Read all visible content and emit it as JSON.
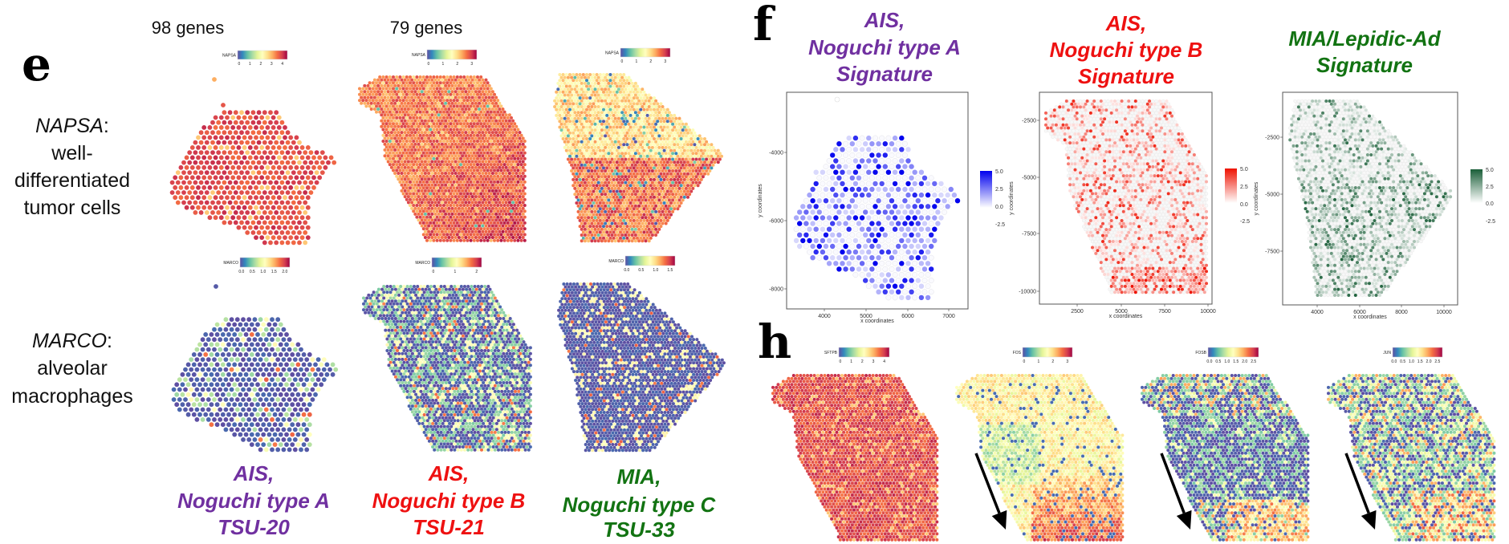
{
  "panel_e": {
    "letter": "e",
    "gene_counts": [
      "98 genes",
      "79 genes"
    ],
    "rows": [
      {
        "gene": "NAPSA",
        "suffix": ":",
        "desc": [
          "well-",
          "differentiated",
          "tumor cells"
        ]
      },
      {
        "gene": "MARCO",
        "suffix": ":",
        "desc": [
          "alveolar",
          "macrophages"
        ]
      }
    ],
    "samples": [
      {
        "lines": [
          "AIS,",
          "Noguchi type A",
          "TSU-20"
        ],
        "color": "#7030a0"
      },
      {
        "lines": [
          "AIS,",
          "Noguchi type B",
          "TSU-21"
        ],
        "color": "#ee1111"
      },
      {
        "lines": [
          "MIA,",
          "Noguchi type C",
          "TSU-33"
        ],
        "color": "#127312"
      }
    ],
    "colorbars": [
      {
        "label": "NAPSA",
        "ticks": [
          "0",
          "1",
          "2",
          "3",
          "4"
        ]
      },
      {
        "label": "NAPSA",
        "ticks": [
          "0",
          "1",
          "2",
          "3"
        ]
      },
      {
        "label": "NAPSA",
        "ticks": [
          "0",
          "1",
          "2",
          "3"
        ]
      },
      {
        "label": "MARCO",
        "ticks": [
          "0.0",
          "0.5",
          "1.0",
          "1.5",
          "2.0"
        ]
      },
      {
        "label": "MARCO",
        "ticks": [
          "0",
          "1",
          "2"
        ]
      },
      {
        "label": "MARCO",
        "ticks": [
          "0.0",
          "0.5",
          "1.0",
          "1.5"
        ]
      }
    ],
    "colormap": "spectral"
  },
  "panel_f": {
    "letter": "f",
    "plots": [
      {
        "title": [
          "AIS,",
          "Noguchi type A",
          "Signature"
        ],
        "title_color": "#7030a0",
        "accent": "#0000ee",
        "xlabel": "x coordinates",
        "ylabel": "y coordinates",
        "xticks": [
          "4000",
          "5000",
          "6000",
          "7000"
        ],
        "yticks": [
          "-4000",
          "-6000",
          "-8000"
        ],
        "legend_ticks": [
          "5.0",
          "2.5",
          "0.0",
          "-2.5"
        ]
      },
      {
        "title": [
          "AIS,",
          "Noguchi type B",
          "Signature"
        ],
        "title_color": "#ee1111",
        "accent": "#ee1100",
        "xlabel": "x coordinates",
        "ylabel": "y coordinates",
        "xticks": [
          "2500",
          "5000",
          "7500",
          "10000"
        ],
        "yticks": [
          "-2500",
          "-5000",
          "-7500",
          "-10000"
        ],
        "legend_ticks": [
          "5.0",
          "2.5",
          "0.0",
          "-2.5"
        ]
      },
      {
        "title": [
          "MIA/Lepidic-Ad",
          "Signature"
        ],
        "title_color": "#127312",
        "accent": "#1a5e38",
        "xlabel": "x coordinates",
        "ylabel": "y coordinates",
        "xticks": [
          "4000",
          "6000",
          "8000",
          "10000"
        ],
        "yticks": [
          "-2500",
          "-5000",
          "-7500"
        ],
        "legend_ticks": [
          "5.0",
          "2.5",
          "0.0",
          "-2.5"
        ]
      }
    ]
  },
  "panel_h": {
    "letter": "h",
    "colorbars": [
      {
        "label": "SFTPB",
        "ticks": [
          "0",
          "1",
          "2",
          "3",
          "4"
        ]
      },
      {
        "label": "FOS",
        "ticks": [
          "0",
          "1",
          "2",
          "3"
        ]
      },
      {
        "label": "FOSB",
        "ticks": [
          "0.0",
          "0.5",
          "1.0",
          "1.5",
          "2.0",
          "2.5"
        ]
      },
      {
        "label": "JUN",
        "ticks": [
          "0.0",
          "0.5",
          "1.0",
          "1.5",
          "2.0",
          "2.5"
        ]
      }
    ],
    "arrow_color": "#000000"
  }
}
